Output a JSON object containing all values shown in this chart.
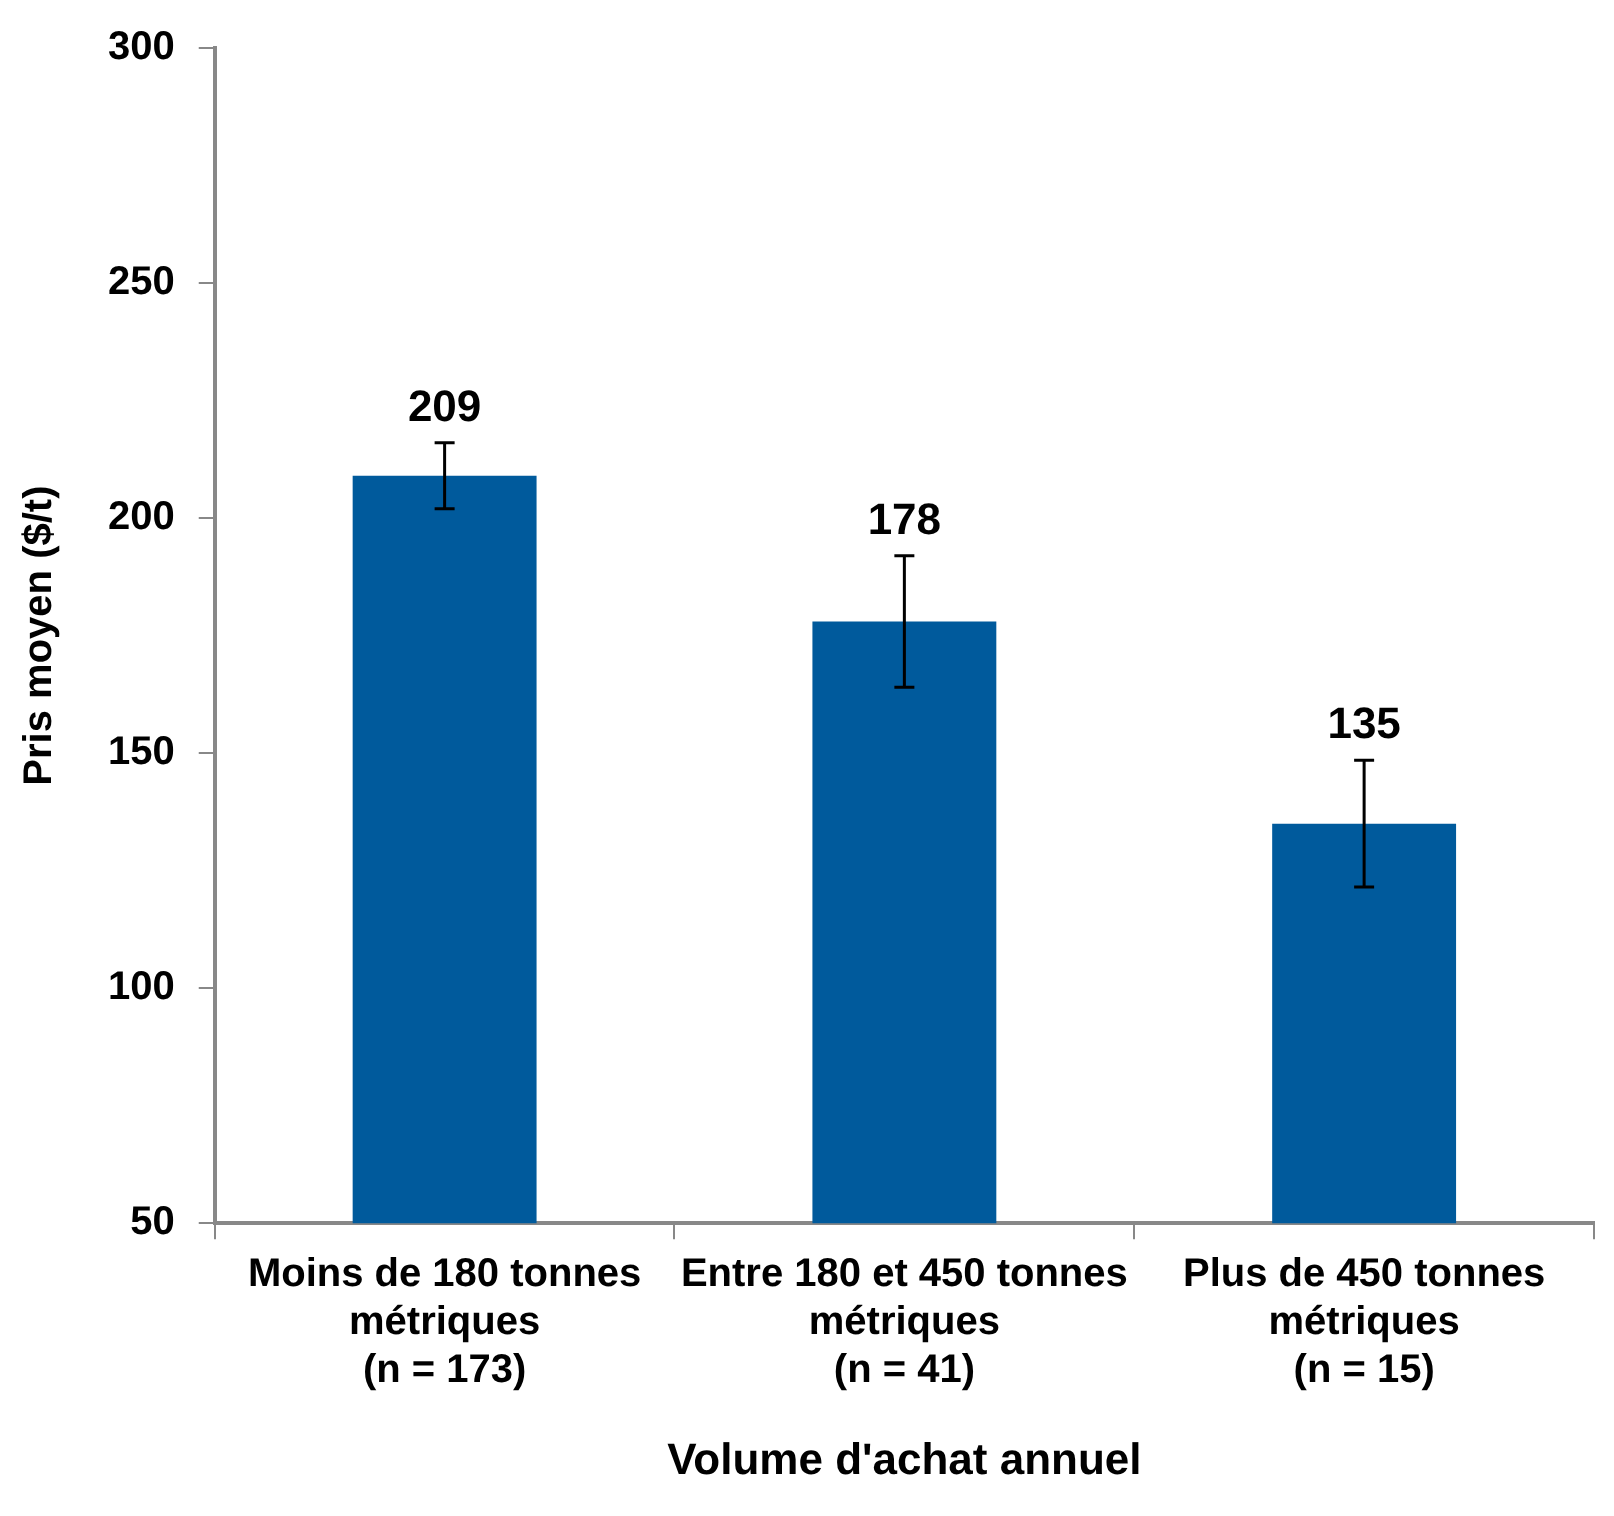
{
  "chart_data": {
    "type": "bar",
    "xlabel": "Volume d'achat annuel",
    "ylabel": "Pris moyen ($/t)",
    "categories": [
      "Moins de 180 tonnes\nmétriques\n(n = 173)",
      "Entre 180 et 450 tonnes\nmétriques\n(n = 41)",
      "Plus de 450 tonnes\nmétriques\n(n = 15)"
    ],
    "values": [
      209,
      178,
      135
    ],
    "errors": [
      7,
      14,
      13.5
    ],
    "color": "#005a9c",
    "ylim": [
      50,
      300
    ],
    "yticks": [
      50,
      100,
      150,
      200,
      250,
      300
    ],
    "grid": false,
    "legend": false,
    "data_labels": true
  }
}
